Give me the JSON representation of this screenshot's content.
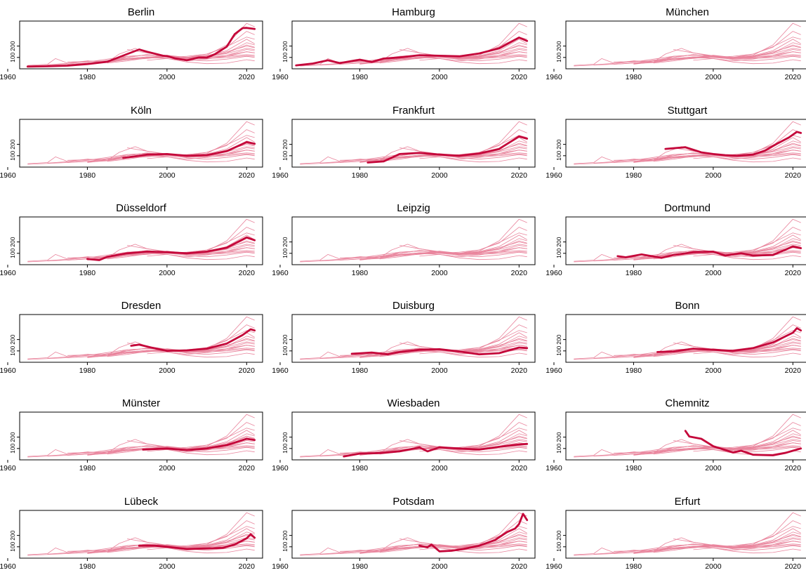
{
  "chart_data": {
    "type": "line",
    "layout": "small-multiples",
    "xlim": [
      1963,
      2024
    ],
    "ylim": [
      0,
      420
    ],
    "xticks": [
      1960,
      1980,
      2000,
      2020
    ],
    "yticks": [
      100,
      200
    ],
    "ytick_labels": [
      "100",
      "200"
    ],
    "colors": {
      "highlight": "#c4073a",
      "background": "#e9859d"
    },
    "cities": [
      {
        "name": "Berlin",
        "start": 1965,
        "end": 2022,
        "x": [
          1965,
          1970,
          1975,
          1980,
          1985,
          1990,
          1993,
          1995,
          1999,
          2000,
          2002,
          2005,
          2008,
          2010,
          2012,
          2015,
          2017,
          2019,
          2020,
          2022
        ],
        "y": [
          20,
          22,
          28,
          42,
          62,
          130,
          170,
          150,
          115,
          112,
          92,
          75,
          100,
          98,
          128,
          195,
          305,
          358,
          360,
          350
        ]
      },
      {
        "name": "Hamburg",
        "start": 1964,
        "end": 2022,
        "x": [
          1964,
          1968,
          1972,
          1975,
          1980,
          1983,
          1986,
          1990,
          1995,
          2000,
          2005,
          2010,
          2015,
          2020,
          2022
        ],
        "y": [
          30,
          45,
          75,
          50,
          80,
          60,
          90,
          100,
          120,
          115,
          110,
          135,
          180,
          275,
          245
        ]
      },
      {
        "name": "München",
        "start": null,
        "end": null,
        "x": [],
        "y": []
      },
      {
        "name": "Köln",
        "start": 1989,
        "end": 2022,
        "x": [
          1989,
          1995,
          2000,
          2005,
          2010,
          2015,
          2020,
          2022
        ],
        "y": [
          80,
          110,
          115,
          100,
          105,
          140,
          220,
          205
        ]
      },
      {
        "name": "Frankfurt",
        "start": 1982,
        "end": 2022,
        "x": [
          1982,
          1986,
          1990,
          1995,
          2000,
          2005,
          2010,
          2015,
          2020,
          2022
        ],
        "y": [
          40,
          50,
          115,
          125,
          110,
          100,
          120,
          160,
          270,
          250
        ]
      },
      {
        "name": "Stuttgart",
        "start": 1988,
        "end": 2022,
        "x": [
          1988,
          1993,
          1997,
          2000,
          2003,
          2006,
          2010,
          2013,
          2016,
          2019,
          2021,
          2022
        ],
        "y": [
          160,
          175,
          130,
          115,
          105,
          100,
          110,
          145,
          205,
          260,
          310,
          300
        ]
      },
      {
        "name": "Düsseldorf",
        "start": 1980,
        "end": 2022,
        "x": [
          1980,
          1983,
          1985,
          1990,
          1995,
          2000,
          2005,
          2010,
          2015,
          2020,
          2022
        ],
        "y": [
          50,
          40,
          70,
          100,
          115,
          110,
          100,
          115,
          150,
          240,
          215
        ]
      },
      {
        "name": "Leipzig",
        "start": null,
        "end": null,
        "x": [],
        "y": []
      },
      {
        "name": "Dortmund",
        "start": 1976,
        "end": 2022,
        "x": [
          1976,
          1978,
          1982,
          1987,
          1990,
          1995,
          2000,
          2003,
          2007,
          2010,
          2015,
          2020,
          2022
        ],
        "y": [
          75,
          65,
          90,
          60,
          85,
          110,
          115,
          80,
          100,
          80,
          85,
          160,
          145
        ]
      },
      {
        "name": "Dresden",
        "start": 1991,
        "end": 2022,
        "x": [
          1991,
          1993,
          1996,
          2000,
          2005,
          2010,
          2015,
          2019,
          2021,
          2022
        ],
        "y": [
          145,
          155,
          130,
          100,
          105,
          120,
          165,
          240,
          290,
          280
        ]
      },
      {
        "name": "Duisburg",
        "start": 1978,
        "end": 2022,
        "x": [
          1978,
          1983,
          1987,
          1990,
          1995,
          2000,
          2005,
          2010,
          2015,
          2020,
          2022
        ],
        "y": [
          75,
          85,
          70,
          90,
          110,
          115,
          95,
          70,
          80,
          130,
          125
        ]
      },
      {
        "name": "Bonn",
        "start": 1986,
        "end": 2022,
        "x": [
          1986,
          1990,
          1995,
          2000,
          2005,
          2010,
          2015,
          2020,
          2021,
          2022
        ],
        "y": [
          90,
          95,
          120,
          110,
          100,
          125,
          175,
          260,
          300,
          280
        ]
      },
      {
        "name": "Münster",
        "start": 1994,
        "end": 2022,
        "x": [
          1994,
          1997,
          2000,
          2005,
          2010,
          2015,
          2020,
          2022
        ],
        "y": [
          90,
          95,
          100,
          85,
          100,
          130,
          185,
          175
        ]
      },
      {
        "name": "Wiesbaden",
        "start": 1976,
        "end": 2022,
        "x": [
          1976,
          1980,
          1985,
          1990,
          1995,
          1997,
          2000,
          2005,
          2010,
          2015,
          2020,
          2022
        ],
        "y": [
          30,
          55,
          60,
          75,
          110,
          75,
          110,
          100,
          90,
          115,
          135,
          140
        ]
      },
      {
        "name": "Chemnitz",
        "start": 1993,
        "end": 2022,
        "x": [
          1993,
          1994,
          1997,
          2000,
          2005,
          2007,
          2010,
          2015,
          2018,
          2020,
          2022
        ],
        "y": [
          255,
          205,
          185,
          120,
          65,
          80,
          45,
          40,
          60,
          80,
          100
        ]
      },
      {
        "name": "Lübeck",
        "start": 1993,
        "end": 2022,
        "x": [
          1993,
          1997,
          2000,
          2005,
          2010,
          2014,
          2017,
          2020,
          2021,
          2022
        ],
        "y": [
          110,
          110,
          100,
          80,
          85,
          90,
          120,
          175,
          210,
          180
        ]
      },
      {
        "name": "Potsdam",
        "start": 1995,
        "end": 2022,
        "x": [
          1995,
          1997,
          1998,
          2000,
          2003,
          2006,
          2010,
          2014,
          2017,
          2019,
          2020,
          2021,
          2022
        ],
        "y": [
          110,
          95,
          120,
          60,
          65,
          80,
          110,
          160,
          230,
          260,
          300,
          390,
          335
        ]
      },
      {
        "name": "Erfurt",
        "start": null,
        "end": null,
        "x": [],
        "y": []
      }
    ],
    "background_series": [
      {
        "x": [
          1965,
          1970,
          1972,
          1975,
          1980,
          1985,
          1990,
          1995,
          2000,
          2005,
          2010,
          2015,
          2020,
          2022
        ],
        "y": [
          30,
          40,
          90,
          50,
          70,
          60,
          110,
          120,
          115,
          100,
          130,
          195,
          280,
          260
        ]
      },
      {
        "x": [
          1965,
          1975,
          1985,
          1988,
          1992,
          1995,
          2000,
          2005,
          2010,
          2015,
          2020,
          2022
        ],
        "y": [
          25,
          40,
          60,
          130,
          180,
          140,
          115,
          100,
          120,
          210,
          400,
          370
        ]
      },
      {
        "x": [
          1975,
          1980,
          1990,
          1995,
          2000,
          2005,
          2010,
          2015,
          2020,
          2022
        ],
        "y": [
          40,
          50,
          100,
          125,
          110,
          95,
          115,
          160,
          260,
          220
        ]
      },
      {
        "x": [
          1970,
          1980,
          1990,
          1995,
          2000,
          2005,
          2010,
          2015,
          2020,
          2022
        ],
        "y": [
          35,
          60,
          110,
          120,
          115,
          100,
          110,
          140,
          210,
          190
        ]
      },
      {
        "x": [
          1980,
          1990,
          1995,
          2000,
          2005,
          2010,
          2015,
          2020,
          2022
        ],
        "y": [
          40,
          80,
          90,
          110,
          90,
          100,
          120,
          170,
          160
        ]
      },
      {
        "x": [
          1980,
          1985,
          1990,
          1995,
          2000,
          2005,
          2010,
          2015,
          2020,
          2022
        ],
        "y": [
          70,
          60,
          90,
          105,
          110,
          90,
          95,
          120,
          150,
          140
        ]
      },
      {
        "x": [
          1985,
          1990,
          1995,
          2000,
          2005,
          2010,
          2015,
          2020,
          2022
        ],
        "y": [
          50,
          70,
          95,
          115,
          80,
          70,
          85,
          110,
          100
        ]
      },
      {
        "x": [
          1990,
          1995,
          2000,
          2005,
          2010,
          2015,
          2020,
          2022
        ],
        "y": [
          170,
          140,
          110,
          95,
          105,
          140,
          230,
          210
        ]
      },
      {
        "x": [
          1975,
          1985,
          1990,
          1995,
          2000,
          2005,
          2010,
          2015,
          2020,
          2022
        ],
        "y": [
          60,
          70,
          85,
          95,
          100,
          85,
          90,
          100,
          115,
          110
        ]
      },
      {
        "x": [
          1995,
          2000,
          2005,
          2010,
          2015,
          2020,
          2022
        ],
        "y": [
          100,
          90,
          60,
          45,
          50,
          80,
          70
        ]
      },
      {
        "x": [
          1985,
          1990,
          1995,
          2000,
          2005,
          2010,
          2015,
          2020,
          2022
        ],
        "y": [
          60,
          100,
          125,
          105,
          90,
          110,
          150,
          200,
          185
        ]
      },
      {
        "x": [
          1990,
          1995,
          2000,
          2005,
          2010,
          2015,
          2020,
          2022
        ],
        "y": [
          90,
          105,
          100,
          110,
          130,
          190,
          330,
          300
        ]
      },
      {
        "x": [
          1980,
          1990,
          2000,
          2005,
          2010,
          2015,
          2020,
          2022
        ],
        "y": [
          50,
          90,
          100,
          95,
          100,
          110,
          125,
          120
        ]
      },
      {
        "x": [
          1995,
          2000,
          2005,
          2010,
          2015,
          2020,
          2022
        ],
        "y": [
          75,
          90,
          70,
          85,
          110,
          150,
          140
        ]
      },
      {
        "x": [
          1980,
          1985,
          1990,
          1995,
          2000,
          2005,
          2010,
          2015,
          2020,
          2022
        ],
        "y": [
          45,
          55,
          80,
          100,
          120,
          100,
          105,
          135,
          180,
          170
        ]
      }
    ]
  }
}
